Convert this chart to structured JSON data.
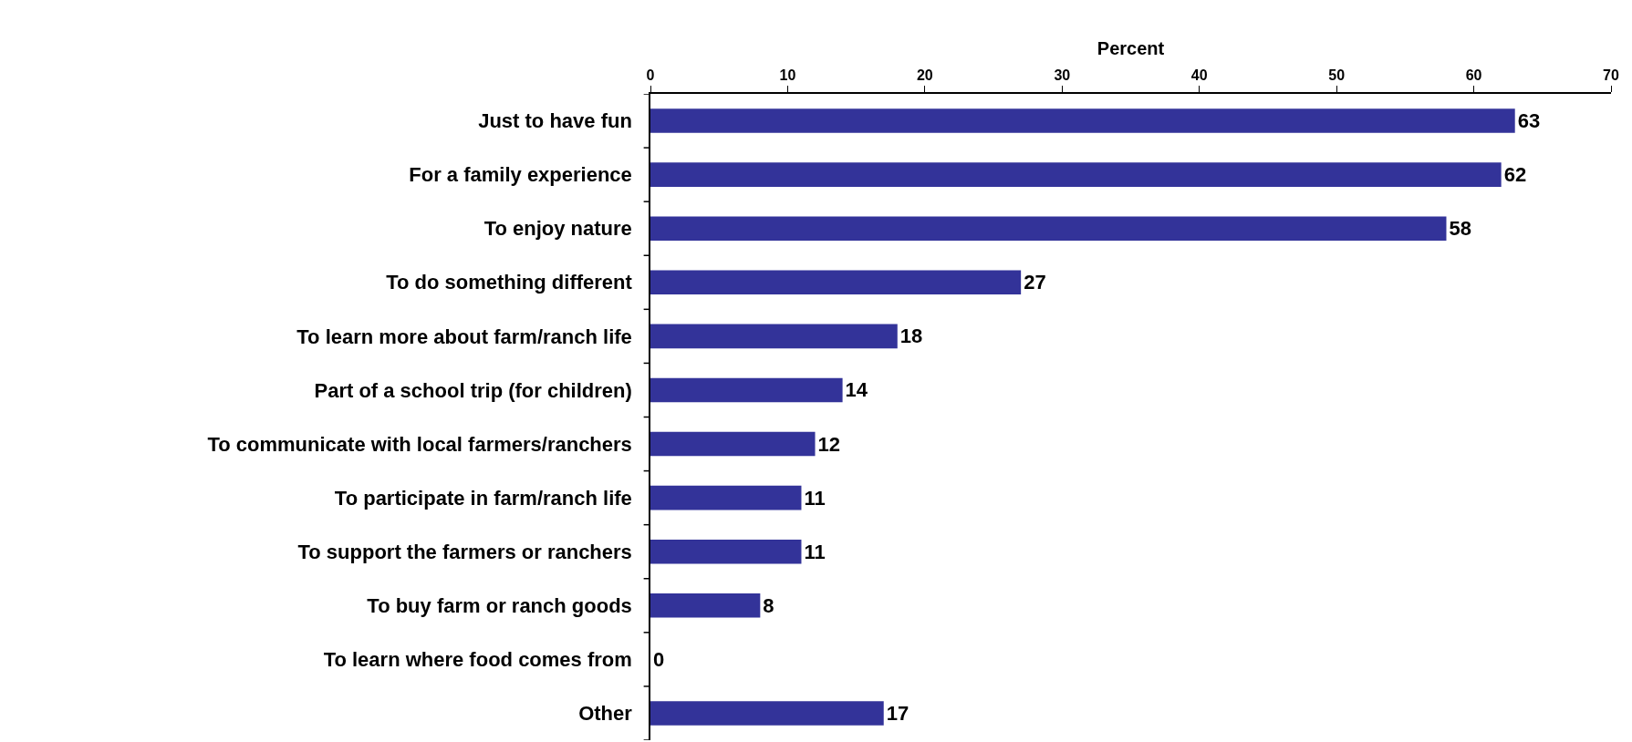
{
  "chart_data": {
    "type": "bar",
    "orientation": "horizontal",
    "xlabel": "Percent",
    "categories": [
      "Just to have fun",
      "For a family experience",
      "To enjoy nature",
      "To do something different",
      "To learn more about farm/ranch life",
      "Part of a school trip (for children)",
      "To communicate with local farmers/ranchers",
      "To participate in farm/ranch life",
      "To support the farmers or ranchers",
      "To buy farm or ranch goods",
      "To learn where food comes from",
      "Other"
    ],
    "values": [
      63,
      62,
      58,
      27,
      18,
      14,
      12,
      11,
      11,
      8,
      0,
      17
    ],
    "color": "#333399",
    "xlim": [
      0,
      70
    ],
    "xticks": [
      0,
      10,
      20,
      30,
      40,
      50,
      60,
      70
    ],
    "data_labels": true
  }
}
